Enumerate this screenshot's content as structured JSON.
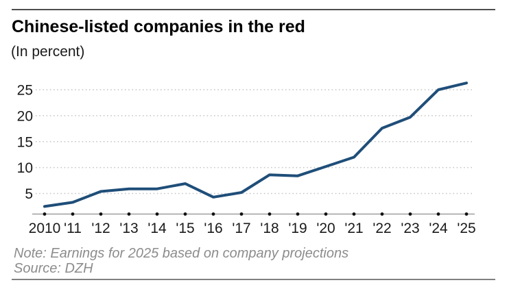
{
  "header": {
    "title": "Chinese-listed companies in the red",
    "subtitle": "(In percent)"
  },
  "footer": {
    "note": "Note: Earnings for 2025 based on company projections",
    "source": "Source: DZH"
  },
  "colors": {
    "line": "#1f4e79",
    "gridline": "#c4c4c4",
    "axis": "#9e9e9e",
    "tick_dot": "#111111",
    "axis_label": "#1a1a1a",
    "note_text": "#8c8c8c",
    "rule_top": "#4d4d4d",
    "rule_bottom": "#808080"
  },
  "chart_data": {
    "type": "line",
    "title": "Chinese-listed companies in the red",
    "subtitle": "(In percent)",
    "x": [
      2010,
      2011,
      2012,
      2013,
      2014,
      2015,
      2016,
      2017,
      2018,
      2019,
      2020,
      2021,
      2022,
      2023,
      2024,
      2025
    ],
    "x_tick_labels": [
      "2010",
      "'11",
      "'12",
      "'13",
      "'14",
      "'15",
      "'16",
      "'17",
      "'18",
      "'19",
      "'20",
      "'21",
      "'22",
      "'23",
      "'24",
      "'25"
    ],
    "values": [
      2.5,
      3.3,
      5.4,
      5.9,
      5.9,
      6.9,
      4.3,
      5.2,
      8.6,
      8.4,
      10.2,
      12.0,
      17.6,
      19.7,
      25.0,
      26.3
    ],
    "y_ticks": [
      5,
      10,
      15,
      20,
      25
    ],
    "ylim": [
      1,
      27.5
    ],
    "ylabel": "In percent",
    "xlabel": "",
    "grid": "horizontal-dotted",
    "legend": "none",
    "annotations": [
      "Earnings for 2025 based on company projections"
    ],
    "source": "DZH"
  }
}
